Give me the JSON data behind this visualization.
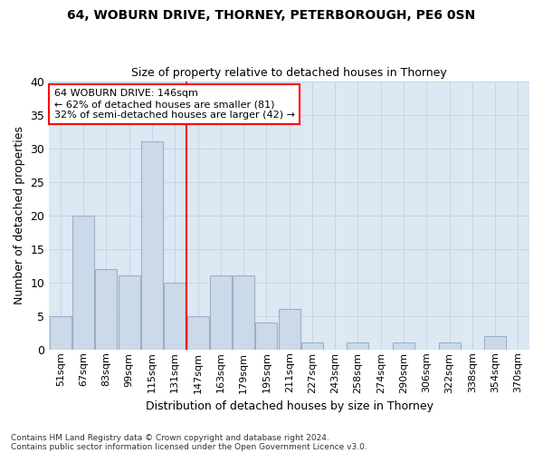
{
  "title1": "64, WOBURN DRIVE, THORNEY, PETERBOROUGH, PE6 0SN",
  "title2": "Size of property relative to detached houses in Thorney",
  "xlabel": "Distribution of detached houses by size in Thorney",
  "ylabel": "Number of detached properties",
  "categories": [
    "51sqm",
    "67sqm",
    "83sqm",
    "99sqm",
    "115sqm",
    "131sqm",
    "147sqm",
    "163sqm",
    "179sqm",
    "195sqm",
    "211sqm",
    "227sqm",
    "243sqm",
    "258sqm",
    "274sqm",
    "290sqm",
    "306sqm",
    "322sqm",
    "338sqm",
    "354sqm",
    "370sqm"
  ],
  "values": [
    5,
    20,
    12,
    11,
    31,
    10,
    5,
    11,
    11,
    4,
    6,
    1,
    0,
    1,
    0,
    1,
    0,
    1,
    0,
    2,
    0
  ],
  "bar_color": "#ccd9e8",
  "bar_edge_color": "#9ab0c8",
  "grid_color": "#c8d4e0",
  "bg_color": "#dce8f4",
  "fig_bg_color": "#ffffff",
  "red_line_index": 6,
  "annotation_title": "64 WOBURN DRIVE: 146sqm",
  "annotation_line1": "← 62% of detached houses are smaller (81)",
  "annotation_line2": "32% of semi-detached houses are larger (42) →",
  "footnote1": "Contains HM Land Registry data © Crown copyright and database right 2024.",
  "footnote2": "Contains public sector information licensed under the Open Government Licence v3.0.",
  "ylim": [
    0,
    40
  ],
  "yticks": [
    0,
    5,
    10,
    15,
    20,
    25,
    30,
    35,
    40
  ]
}
